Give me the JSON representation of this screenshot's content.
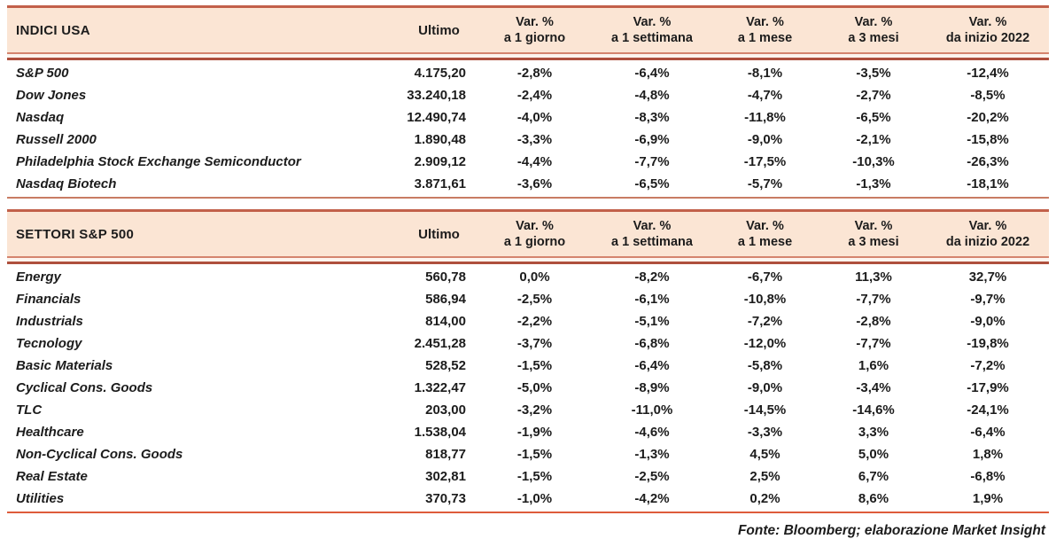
{
  "colors": {
    "header_bg": "#FBE5D4",
    "header_top_border": "#C2604A",
    "header_divider_light": "#D4846E",
    "header_divider_dark": "#AE4F3D",
    "table1_bottom_border": "#C87C63",
    "table2_bottom_border": "#DE5B3B",
    "text": "#1C1C1C"
  },
  "tables": [
    {
      "title": "INDICI USA",
      "ultimo_label": "Ultimo",
      "columns": [
        {
          "line1": "Var. %",
          "line2": "a 1 giorno"
        },
        {
          "line1": "Var. %",
          "line2": "a 1 settimana"
        },
        {
          "line1": "Var. %",
          "line2": "a 1 mese"
        },
        {
          "line1": "Var. %",
          "line2": "a 3 mesi"
        },
        {
          "line1": "Var. %",
          "line2": "da inizio 2022"
        }
      ],
      "rows": [
        {
          "name": "S&P 500",
          "ultimo": "4.175,20",
          "values": [
            "-2,8%",
            "-6,4%",
            "-8,1%",
            "-3,5%",
            "-12,4%"
          ]
        },
        {
          "name": "Dow Jones",
          "ultimo": "33.240,18",
          "values": [
            "-2,4%",
            "-4,8%",
            "-4,7%",
            "-2,7%",
            "-8,5%"
          ]
        },
        {
          "name": "Nasdaq",
          "ultimo": "12.490,74",
          "values": [
            "-4,0%",
            "-8,3%",
            "-11,8%",
            "-6,5%",
            "-20,2%"
          ]
        },
        {
          "name": "Russell 2000",
          "ultimo": "1.890,48",
          "values": [
            "-3,3%",
            "-6,9%",
            "-9,0%",
            "-2,1%",
            "-15,8%"
          ]
        },
        {
          "name": "Philadelphia Stock Exchange Semiconductor",
          "ultimo": "2.909,12",
          "values": [
            "-4,4%",
            "-7,7%",
            "-17,5%",
            "-10,3%",
            "-26,3%"
          ]
        },
        {
          "name": "Nasdaq Biotech",
          "ultimo": "3.871,61",
          "values": [
            "-3,6%",
            "-6,5%",
            "-5,7%",
            "-1,3%",
            "-18,1%"
          ]
        }
      ]
    },
    {
      "title": "SETTORI S&P 500",
      "ultimo_label": "Ultimo",
      "columns": [
        {
          "line1": "Var. %",
          "line2": "a 1 giorno"
        },
        {
          "line1": "Var. %",
          "line2": "a 1 settimana"
        },
        {
          "line1": "Var. %",
          "line2": "a 1 mese"
        },
        {
          "line1": "Var. %",
          "line2": "a 3 mesi"
        },
        {
          "line1": "Var. %",
          "line2": "da inizio 2022"
        }
      ],
      "rows": [
        {
          "name": "Energy",
          "ultimo": "560,78",
          "values": [
            "0,0%",
            "-8,2%",
            "-6,7%",
            "11,3%",
            "32,7%"
          ]
        },
        {
          "name": "Financials",
          "ultimo": "586,94",
          "values": [
            "-2,5%",
            "-6,1%",
            "-10,8%",
            "-7,7%",
            "-9,7%"
          ]
        },
        {
          "name": "Industrials",
          "ultimo": "814,00",
          "values": [
            "-2,2%",
            "-5,1%",
            "-7,2%",
            "-2,8%",
            "-9,0%"
          ]
        },
        {
          "name": "Tecnology",
          "ultimo": "2.451,28",
          "values": [
            "-3,7%",
            "-6,8%",
            "-12,0%",
            "-7,7%",
            "-19,8%"
          ]
        },
        {
          "name": "Basic Materials",
          "ultimo": "528,52",
          "values": [
            "-1,5%",
            "-6,4%",
            "-5,8%",
            "1,6%",
            "-7,2%"
          ]
        },
        {
          "name": "Cyclical Cons. Goods",
          "ultimo": "1.322,47",
          "values": [
            "-5,0%",
            "-8,9%",
            "-9,0%",
            "-3,4%",
            "-17,9%"
          ]
        },
        {
          "name": "TLC",
          "ultimo": "203,00",
          "values": [
            "-3,2%",
            "-11,0%",
            "-14,5%",
            "-14,6%",
            "-24,1%"
          ]
        },
        {
          "name": "Healthcare",
          "ultimo": "1.538,04",
          "values": [
            "-1,9%",
            "-4,6%",
            "-3,3%",
            "3,3%",
            "-6,4%"
          ]
        },
        {
          "name": "Non-Cyclical Cons. Goods",
          "ultimo": "818,77",
          "values": [
            "-1,5%",
            "-1,3%",
            "4,5%",
            "5,0%",
            "1,8%"
          ]
        },
        {
          "name": "Real Estate",
          "ultimo": "302,81",
          "values": [
            "-1,5%",
            "-2,5%",
            "2,5%",
            "6,7%",
            "-6,8%"
          ]
        },
        {
          "name": "Utilities",
          "ultimo": "370,73",
          "values": [
            "-1,0%",
            "-4,2%",
            "0,2%",
            "8,6%",
            "1,9%"
          ]
        }
      ]
    }
  ],
  "footer": {
    "text": "Fonte: Bloomberg; elaborazione Market Insight"
  }
}
